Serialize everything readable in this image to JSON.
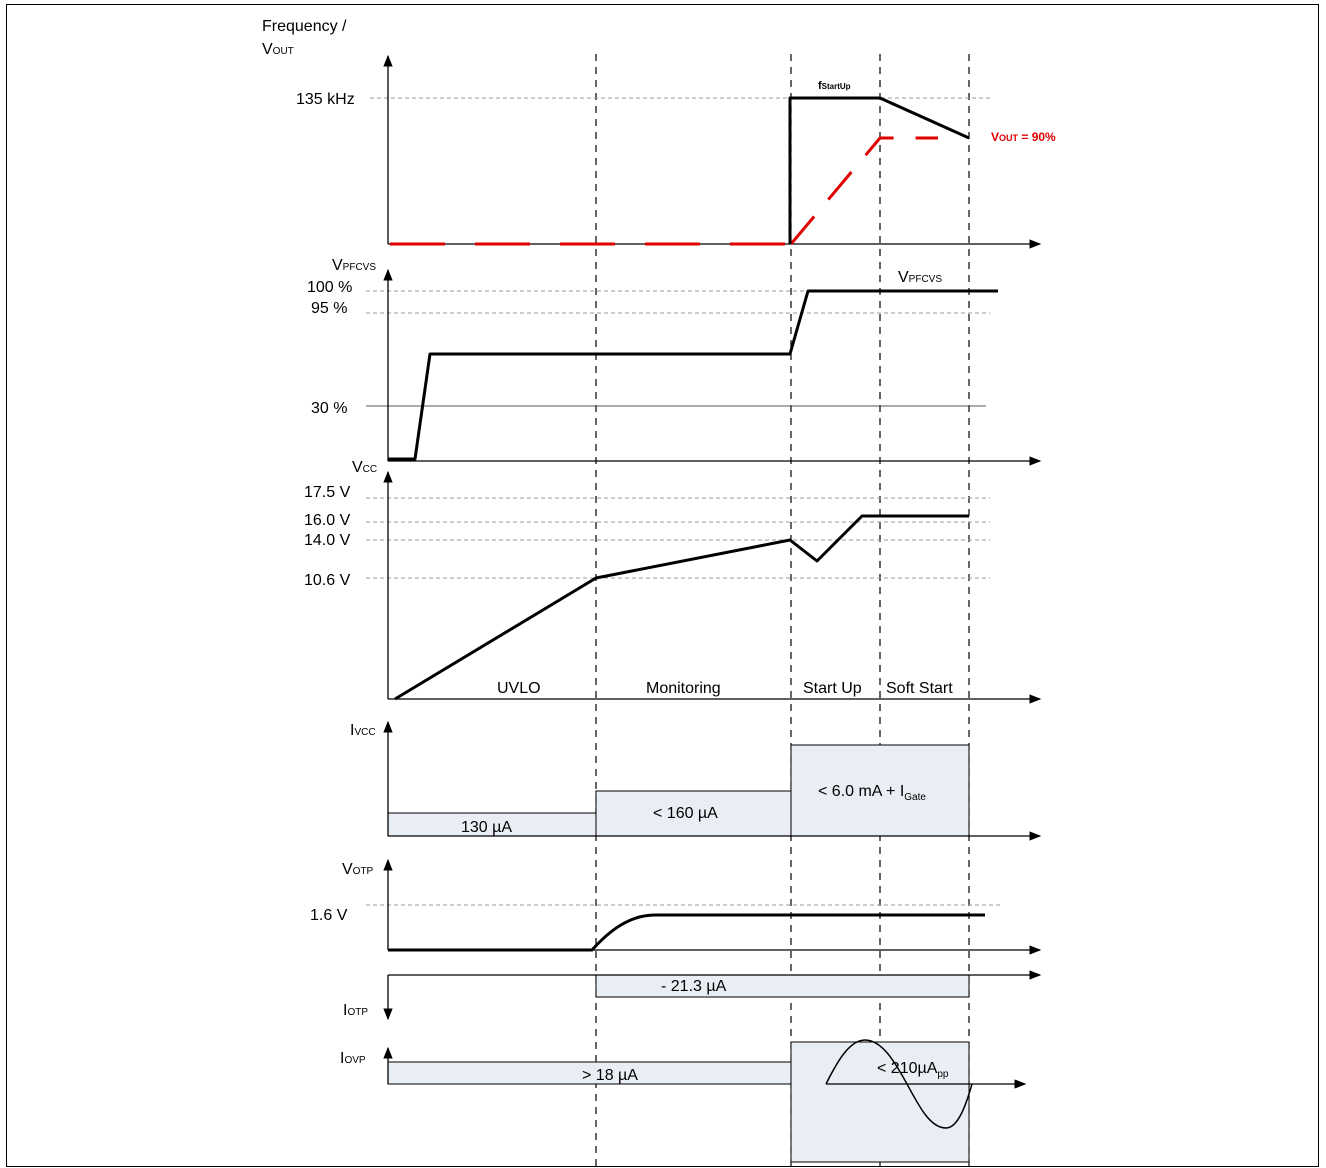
{
  "panels": {
    "frequency": {
      "axis_label_line1": "Frequency /",
      "axis_label_vout_main": "V",
      "axis_label_vout_sub": "OUT",
      "tick_135khz": "135 kHz",
      "fstartup_main": "f",
      "fstartup_sub": "StartUp",
      "vout_annot_main": "V",
      "vout_annot_sub": "OUT",
      "vout_annot_rest": " = 90%"
    },
    "vpfcvs": {
      "axis_label_main": "V",
      "axis_label_sub": "PFCVS",
      "tick_100": "100 %",
      "tick_95": "95 %",
      "tick_30": "30 %",
      "curve_label_main": "V",
      "curve_label_sub": "PFCVS"
    },
    "vcc": {
      "axis_label_main": "V",
      "axis_label_sub": "CC",
      "tick_175": "17.5 V",
      "tick_160": "16.0 V",
      "tick_140": "14.0 V",
      "tick_106": "10.6 V",
      "phase_uvlo": "UVLO",
      "phase_monitoring": "Monitoring",
      "phase_startup": "Start Up",
      "phase_softstart": "Soft Start"
    },
    "ivcc": {
      "axis_label_main": "I",
      "axis_label_sub": "VCC",
      "box_130": "130 µA",
      "box_160": "< 160 µA",
      "box_6ma_main": "< 6.0 mA + I",
      "box_6ma_sub": "Gate"
    },
    "votp": {
      "axis_label_main": "V",
      "axis_label_sub": "OTP",
      "tick_16": "1.6 V"
    },
    "iotp": {
      "axis_label_main": "I",
      "axis_label_sub": "OTP",
      "box_213": "- 21.3 µA"
    },
    "iovp": {
      "axis_label_main": "I",
      "axis_label_sub": "OVP",
      "box_18": "> 18 µA",
      "box_210_main": "< 210µA",
      "box_210_sub": "pp"
    }
  },
  "colors": {
    "signal": "#000000",
    "vout_trace": "#e00000",
    "box_fill": "#e9edf4",
    "grid": "#9a9a9a"
  }
}
